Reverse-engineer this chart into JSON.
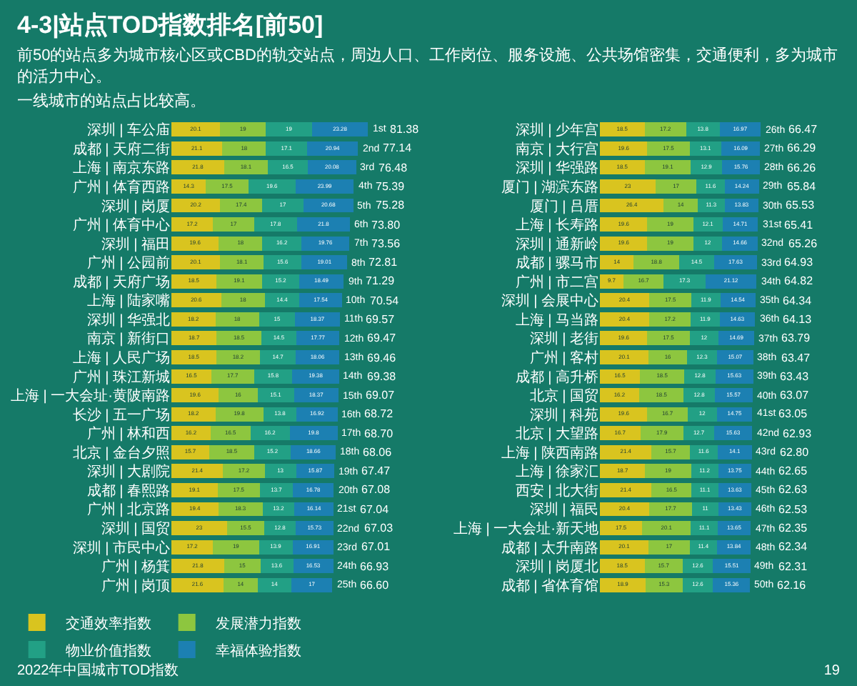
{
  "chart_data": [
    {
      "type": "bar",
      "orientation": "horizontal",
      "stacked": true,
      "title": "4-3|站点TOD指数排名[前50]",
      "categories": [
        "深圳 | 车公庙",
        "成都 | 天府二街",
        "上海 | 南京东路",
        "广州 | 体育西路",
        "深圳 | 岗厦",
        "广州 | 体育中心",
        "深圳 | 福田",
        "广州 | 公园前",
        "成都 | 天府广场",
        "上海 | 陆家嘴",
        "深圳 | 华强北",
        "南京 | 新街口",
        "上海 | 人民广场",
        "广州 | 珠江新城",
        "上海 | 一大会址·黄陂南路",
        "长沙 | 五一广场",
        "广州 | 林和西",
        "北京 | 金台夕照",
        "深圳 | 大剧院",
        "成都 | 春熙路",
        "广州 | 北京路",
        "深圳 | 国贸",
        "深圳 | 市民中心",
        "广州 | 杨箕",
        "广州 | 岗顶"
      ],
      "series": [
        {
          "name": "交通效率指数",
          "color": "#d9c41f",
          "values": [
            20.1,
            21.1,
            21.8,
            14.3,
            20.2,
            17.2,
            19.6,
            20.1,
            18.5,
            20.6,
            18.2,
            18.7,
            18.5,
            16.5,
            19.6,
            18.2,
            16.2,
            15.7,
            21.4,
            19.1,
            19.4,
            23.0,
            17.2,
            21.8,
            21.6
          ]
        },
        {
          "name": "发展潜力指数",
          "color": "#8dc63f",
          "values": [
            19.0,
            18.0,
            18.1,
            17.5,
            17.4,
            17.0,
            18.0,
            18.1,
            19.1,
            18.0,
            18.0,
            18.5,
            18.2,
            17.7,
            16.0,
            19.8,
            16.5,
            18.5,
            17.2,
            17.5,
            18.3,
            15.5,
            19.0,
            15.0,
            14.0
          ]
        },
        {
          "name": "物业价值指数",
          "color": "#22a085",
          "values": [
            19.0,
            17.1,
            16.5,
            19.6,
            17.0,
            17.8,
            16.2,
            15.6,
            15.2,
            14.4,
            15.0,
            14.5,
            14.7,
            15.8,
            15.1,
            13.8,
            16.2,
            15.2,
            13.0,
            13.7,
            13.2,
            12.8,
            13.9,
            13.6,
            14.0
          ]
        },
        {
          "name": "幸福体验指数",
          "color": "#1c80b2",
          "values": [
            23.28,
            20.94,
            20.08,
            23.99,
            20.68,
            21.8,
            19.76,
            19.01,
            18.49,
            17.54,
            18.37,
            17.77,
            18.06,
            19.38,
            18.37,
            16.92,
            19.8,
            18.66,
            15.87,
            16.78,
            16.14,
            15.73,
            16.91,
            16.53,
            17.0
          ]
        }
      ],
      "totals": [
        "81.38",
        "77.14",
        "76.48",
        "75.39",
        "75.28",
        "73.80",
        "73.56",
        "72.81",
        "71.29",
        "70.54",
        "69.57",
        "69.47",
        "69.46",
        "69.38",
        "69.07",
        "68.72",
        "68.70",
        "68.06",
        "67.47",
        "67.08",
        "67.04",
        "67.03",
        "67.01",
        "66.93",
        "66.60"
      ],
      "data_labels": true,
      "legend": "bottom left",
      "tick_labels": "y",
      "annotations": [
        "前50的站点多为城市核心区或CBD的轨交站点，周边人口、工作岗位、服务设施、公共场馆密集，交通便利，多为城市的活力中心。",
        "一线城市的站点占比较高。",
        "2022年中国城市TOD指数",
        {
          "text": "1st",
          "x": 81.38,
          "y": "深圳 | 车公庙"
        },
        {
          "text": "2nd",
          "x": 77.14,
          "y": "成都 | 天府二街"
        },
        {
          "text": "3rd",
          "x": 76.48,
          "y": "上海 | 南京东路"
        },
        {
          "text": "4th",
          "x": 75.39,
          "y": "广州 | 体育西路"
        },
        {
          "text": "5th",
          "x": 75.28,
          "y": "深圳 | 岗厦"
        },
        {
          "text": "6th",
          "x": 73.8,
          "y": "广州 | 体育中心"
        },
        {
          "text": "7th",
          "x": 73.56,
          "y": "深圳 | 福田"
        },
        {
          "text": "8th",
          "x": 72.81,
          "y": "广州 | 公园前"
        },
        {
          "text": "9th",
          "x": 71.29,
          "y": "成都 | 天府广场"
        },
        {
          "text": "10th",
          "x": 70.54,
          "y": "上海 | 陆家嘴"
        },
        {
          "text": "11th",
          "x": 69.57,
          "y": "深圳 | 华强北"
        },
        {
          "text": "12th",
          "x": 69.47,
          "y": "南京 | 新街口"
        },
        {
          "text": "13th",
          "x": 69.46,
          "y": "上海 | 人民广场"
        },
        {
          "text": "14th",
          "x": 69.38,
          "y": "广州 | 珠江新城"
        },
        {
          "text": "15th",
          "x": 69.07,
          "y": "上海 | 一大会址·黄陂南路"
        },
        {
          "text": "16th",
          "x": 68.72,
          "y": "长沙 | 五一广场"
        },
        {
          "text": "17th",
          "x": 68.7,
          "y": "广州 | 林和西"
        },
        {
          "text": "18th",
          "x": 68.06,
          "y": "北京 | 金台夕照"
        },
        {
          "text": "19th",
          "x": 67.47,
          "y": "深圳 | 大剧院"
        },
        {
          "text": "20th",
          "x": 67.08,
          "y": "成都 | 春熙路"
        },
        {
          "text": "21st",
          "x": 67.04,
          "y": "广州 | 北京路"
        },
        {
          "text": "22nd",
          "x": 67.03,
          "y": "深圳 | 国贸"
        },
        {
          "text": "23rd",
          "x": 67.01,
          "y": "深圳 | 市民中心"
        },
        {
          "text": "24th",
          "x": 66.93,
          "y": "广州 | 杨箕"
        },
        {
          "text": "25th",
          "x": 66.6,
          "y": "广州 | 岗顶"
        }
      ]
    },
    {
      "type": "bar",
      "orientation": "horizontal",
      "stacked": true,
      "categories": [
        "深圳 | 少年宫",
        "南京 | 大行宫",
        "深圳 | 华强路",
        "厦门 | 湖滨东路",
        "厦门 | 吕厝",
        "上海 | 长寿路",
        "深圳 | 通新岭",
        "成都 | 骡马市",
        "广州 | 市二宫",
        "深圳 | 会展中心",
        "上海 | 马当路",
        "深圳 | 老街",
        "广州 | 客村",
        "成都 | 高升桥",
        "北京 | 国贸",
        "深圳 | 科苑",
        "北京 | 大望路",
        "上海 | 陕西南路",
        "上海 | 徐家汇",
        "西安 | 北大街",
        "深圳 | 福民",
        "上海 | 一大会址·新天地",
        "成都 | 太升南路",
        "深圳 | 岗厦北",
        "成都 | 省体育馆"
      ],
      "series": [
        {
          "color": "#d9c41f",
          "values": [
            18.5,
            19.6,
            18.5,
            23.0,
            26.4,
            19.6,
            19.6,
            14.0,
            9.7,
            20.4,
            20.4,
            19.6,
            20.1,
            16.5,
            16.2,
            19.6,
            16.7,
            21.4,
            18.7,
            21.4,
            20.4,
            17.5,
            20.1,
            18.5,
            18.9
          ]
        },
        {
          "color": "#8dc63f",
          "values": [
            17.2,
            17.5,
            19.1,
            17.0,
            14.0,
            19.0,
            19.0,
            18.8,
            16.7,
            17.5,
            17.2,
            17.5,
            16.0,
            18.5,
            18.5,
            16.7,
            17.9,
            15.7,
            19.0,
            16.5,
            17.7,
            20.1,
            17.0,
            15.7,
            15.3
          ]
        },
        {
          "color": "#22a085",
          "values": [
            13.8,
            13.1,
            12.9,
            11.6,
            11.3,
            12.1,
            12.0,
            14.5,
            17.3,
            11.9,
            11.9,
            12.0,
            12.3,
            12.8,
            12.8,
            12.0,
            12.7,
            11.6,
            11.2,
            11.1,
            11.0,
            11.1,
            11.4,
            12.6,
            12.6
          ]
        },
        {
          "color": "#1c80b2",
          "values": [
            16.97,
            16.09,
            15.76,
            14.24,
            13.83,
            14.71,
            14.66,
            17.63,
            21.12,
            14.54,
            14.63,
            14.69,
            15.07,
            15.63,
            15.57,
            14.75,
            15.63,
            14.1,
            13.75,
            13.63,
            13.43,
            13.65,
            13.84,
            15.51,
            15.36
          ]
        }
      ],
      "totals": [
        "66.47",
        "66.29",
        "66.26",
        "65.84",
        "65.53",
        "65.41",
        "65.26",
        "64.93",
        "64.82",
        "64.34",
        "64.13",
        "63.79",
        "63.47",
        "63.43",
        "63.07",
        "63.05",
        "62.93",
        "62.80",
        "62.65",
        "62.63",
        "62.53",
        "62.35",
        "62.34",
        "62.31",
        "62.16"
      ],
      "data_labels": true,
      "tick_labels": "y",
      "annotations": [
        "19",
        {
          "text": "26th",
          "x": 66.47,
          "y": "深圳 | 少年宫"
        },
        {
          "text": "27th",
          "x": 66.29,
          "y": "南京 | 大行宫"
        },
        {
          "text": "28th",
          "x": 66.26,
          "y": "深圳 | 华强路"
        },
        {
          "text": "29th",
          "x": 65.84,
          "y": "厦门 | 湖滨东路"
        },
        {
          "text": "30th",
          "x": 65.53,
          "y": "厦门 | 吕厝"
        },
        {
          "text": "31st",
          "x": 65.41,
          "y": "上海 | 长寿路"
        },
        {
          "text": "32nd",
          "x": 65.26,
          "y": "深圳 | 通新岭"
        },
        {
          "text": "33rd",
          "x": 64.93,
          "y": "成都 | 骡马市"
        },
        {
          "text": "34th",
          "x": 64.82,
          "y": "广州 | 市二宫"
        },
        {
          "text": "35th",
          "x": 64.34,
          "y": "深圳 | 会展中心"
        },
        {
          "text": "36th",
          "x": 64.13,
          "y": "上海 | 马当路"
        },
        {
          "text": "37th",
          "x": 63.79,
          "y": "深圳 | 老街"
        },
        {
          "text": "38th",
          "x": 63.47,
          "y": "广州 | 客村"
        },
        {
          "text": "39th",
          "x": 63.43,
          "y": "成都 | 高升桥"
        },
        {
          "text": "40th",
          "x": 63.07,
          "y": "北京 | 国贸"
        },
        {
          "text": "41st",
          "x": 63.05,
          "y": "深圳 | 科苑"
        },
        {
          "text": "42nd",
          "x": 62.93,
          "y": "北京 | 大望路"
        },
        {
          "text": "43rd",
          "x": 62.8,
          "y": "上海 | 陕西南路"
        },
        {
          "text": "44th",
          "x": 62.65,
          "y": "上海 | 徐家汇"
        },
        {
          "text": "45th",
          "x": 62.63,
          "y": "西安 | 北大街"
        },
        {
          "text": "46th",
          "x": 62.53,
          "y": "深圳 | 福民"
        },
        {
          "text": "47th",
          "x": 62.35,
          "y": "上海 | 一大会址·新天地"
        },
        {
          "text": "48th",
          "x": 62.34,
          "y": "成都 | 太升南路"
        },
        {
          "text": "49th",
          "x": 62.31,
          "y": "深圳 | 岗厦北"
        },
        {
          "text": "50th",
          "x": 62.16,
          "y": "成都 | 省体育馆"
        }
      ]
    }
  ]
}
